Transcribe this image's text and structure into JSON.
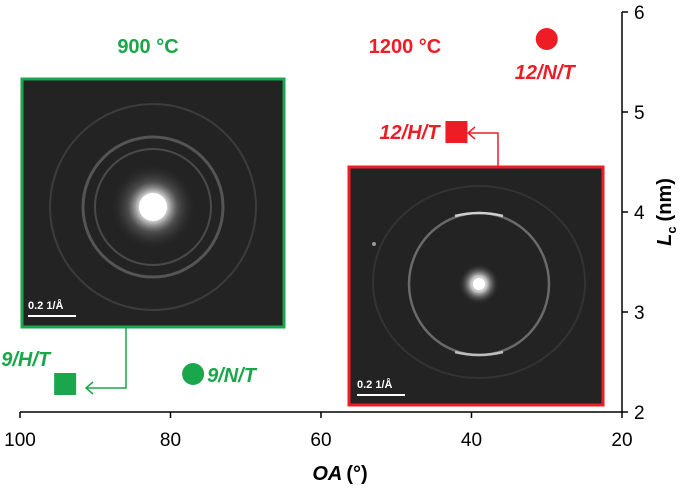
{
  "colors": {
    "green": "#1aa64a",
    "red": "#ee1c25",
    "axis": "#000000",
    "inset_bg": "#232323"
  },
  "chart_data": {
    "type": "scatter",
    "xlabel": "OA",
    "xunit": "(°)",
    "ylabel": "L",
    "ylabel_sub": "c",
    "yunit": "(nm)",
    "xlim": [
      100,
      20
    ],
    "ylim": [
      2,
      6
    ],
    "x_reversed": true,
    "y_axis_side": "right",
    "x_ticks": [
      100,
      80,
      60,
      40,
      20
    ],
    "y_ticks": [
      2,
      3,
      4,
      5,
      6
    ],
    "grid": false,
    "group_titles": [
      {
        "text": "900 °C",
        "color": "#1aa64a"
      },
      {
        "text": "1200 °C",
        "color": "#ee1c25"
      }
    ],
    "points": [
      {
        "label": "9/H/T",
        "x": 94,
        "y": 2.28,
        "marker": "square",
        "color": "#1aa64a"
      },
      {
        "label": "9/N/T",
        "x": 77,
        "y": 2.38,
        "marker": "circle",
        "color": "#1aa64a"
      },
      {
        "label": "12/H/T",
        "x": 42,
        "y": 4.8,
        "marker": "square",
        "color": "#ee1c25"
      },
      {
        "label": "12/N/T",
        "x": 30,
        "y": 5.73,
        "marker": "circle",
        "color": "#ee1c25"
      }
    ],
    "insets": [
      {
        "name": "900",
        "scale_label": "0.2 1/Å",
        "color": "#1aa64a"
      },
      {
        "name": "1200",
        "scale_label": "0.2 1/Å",
        "color": "#ee1c25"
      }
    ]
  }
}
